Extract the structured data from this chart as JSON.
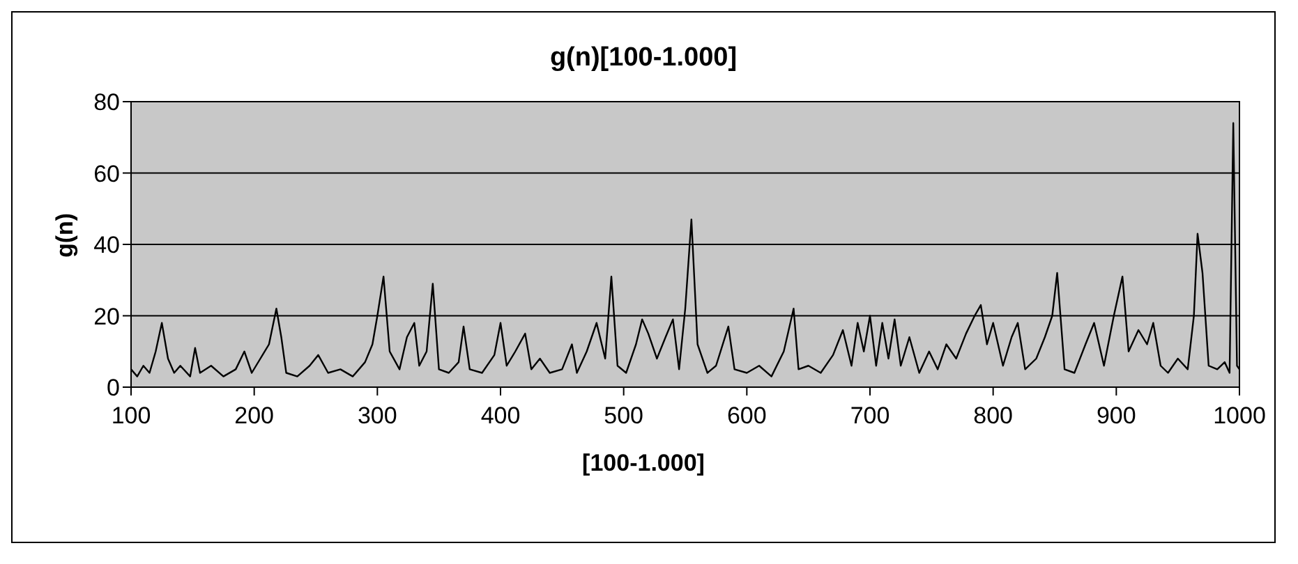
{
  "chart_data": {
    "type": "line",
    "title": "g(n)[100-1.000]",
    "xlabel": "[100-1.000]",
    "ylabel": "g(n)",
    "x": [
      100,
      105,
      110,
      115,
      120,
      125,
      130,
      135,
      140,
      148,
      152,
      156,
      165,
      175,
      185,
      192,
      198,
      205,
      212,
      218,
      222,
      226,
      235,
      245,
      252,
      260,
      270,
      280,
      290,
      296,
      300,
      305,
      310,
      318,
      324,
      330,
      334,
      340,
      345,
      350,
      358,
      366,
      370,
      375,
      385,
      395,
      400,
      405,
      412,
      420,
      425,
      432,
      440,
      450,
      458,
      462,
      470,
      478,
      485,
      490,
      495,
      502,
      510,
      515,
      520,
      527,
      534,
      540,
      545,
      550,
      555,
      560,
      568,
      575,
      585,
      590,
      600,
      610,
      620,
      630,
      638,
      642,
      650,
      660,
      670,
      678,
      685,
      690,
      695,
      700,
      705,
      710,
      715,
      720,
      725,
      732,
      740,
      748,
      755,
      762,
      770,
      778,
      785,
      790,
      795,
      800,
      808,
      815,
      820,
      826,
      835,
      842,
      848,
      852,
      858,
      866,
      875,
      882,
      890,
      898,
      905,
      910,
      918,
      925,
      930,
      936,
      942,
      950,
      958,
      963,
      966,
      970,
      975,
      982,
      988,
      992,
      995,
      998,
      1000
    ],
    "series": [
      {
        "color": "#000000",
        "values": [
          5,
          3,
          6,
          4,
          10,
          18,
          8,
          4,
          6,
          3,
          11,
          4,
          6,
          3,
          5,
          10,
          4,
          8,
          12,
          22,
          14,
          4,
          3,
          6,
          9,
          4,
          5,
          3,
          7,
          12,
          20,
          31,
          10,
          5,
          14,
          18,
          6,
          10,
          29,
          5,
          4,
          7,
          17,
          5,
          4,
          9,
          18,
          6,
          10,
          15,
          5,
          8,
          4,
          5,
          12,
          4,
          10,
          18,
          8,
          31,
          6,
          4,
          12,
          19,
          15,
          8,
          14,
          19,
          5,
          22,
          47,
          12,
          4,
          6,
          17,
          5,
          4,
          6,
          3,
          10,
          22,
          5,
          6,
          4,
          9,
          16,
          6,
          18,
          10,
          20,
          6,
          18,
          8,
          19,
          6,
          14,
          4,
          10,
          5,
          12,
          8,
          15,
          20,
          23,
          12,
          18,
          6,
          14,
          18,
          5,
          8,
          14,
          20,
          32,
          5,
          4,
          12,
          18,
          6,
          20,
          31,
          10,
          16,
          12,
          18,
          6,
          4,
          8,
          5,
          20,
          43,
          32,
          6,
          5,
          7,
          4,
          74,
          6,
          5
        ]
      }
    ],
    "xlim": [
      100,
      1000
    ],
    "xticks": [
      100,
      200,
      300,
      400,
      500,
      600,
      700,
      800,
      900,
      1000
    ],
    "ylim": [
      0,
      80
    ],
    "yticks": [
      0,
      20,
      40,
      60,
      80
    ],
    "grid": "y",
    "legend": false,
    "marker": "none",
    "line_style": "solid"
  }
}
